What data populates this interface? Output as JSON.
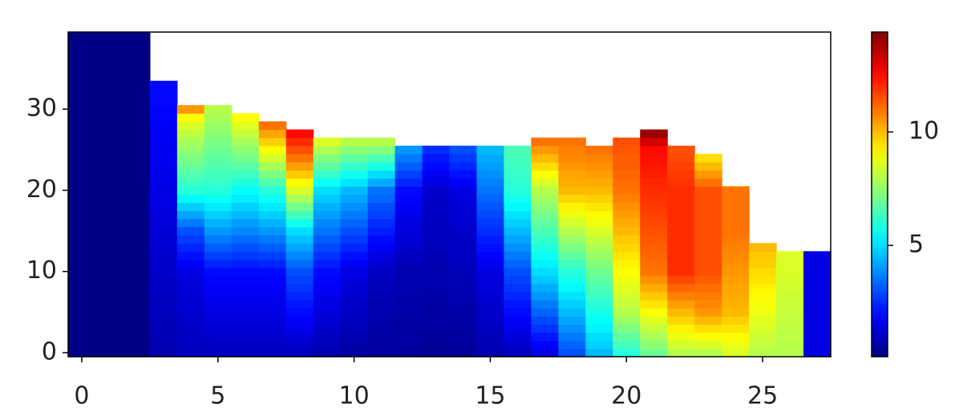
{
  "chart_data": {
    "type": "heatmap",
    "colormap": "jet",
    "clim": [
      0.1,
      14.4
    ],
    "x": [
      0,
      1,
      2,
      3,
      4,
      5,
      6,
      7,
      8,
      9,
      10,
      11,
      12,
      13,
      14,
      15,
      16,
      17,
      18,
      19,
      20,
      21,
      22,
      23,
      24,
      25,
      26,
      27
    ],
    "y": [
      0,
      1,
      2,
      3,
      4,
      5,
      6,
      7,
      8,
      9,
      10,
      11,
      12,
      13,
      14,
      15,
      16,
      17,
      18,
      19,
      20,
      21,
      22,
      23,
      24,
      25,
      26,
      27,
      28,
      29,
      30,
      31,
      32,
      33,
      34,
      35,
      36,
      37,
      38,
      39
    ],
    "values": [
      [
        0.2,
        0.2,
        0.2,
        0.2,
        0.2,
        0.2,
        0.2,
        0.2,
        0.2,
        0.2,
        0.2,
        0.2,
        0.2,
        0.2,
        0.2,
        0.2,
        0.2,
        0.2,
        0.2,
        0.2,
        0.2,
        0.2,
        0.2,
        0.2,
        0.2,
        0.2,
        0.2,
        0.2,
        0.2,
        0.2,
        0.2,
        0.2,
        0.2,
        0.2,
        0.2,
        0.2,
        0.2,
        0.2,
        0.2,
        0.2
      ],
      [
        0.2,
        0.2,
        0.2,
        0.2,
        0.2,
        0.2,
        0.2,
        0.2,
        0.2,
        0.2,
        0.2,
        0.2,
        0.2,
        0.2,
        0.2,
        0.2,
        0.2,
        0.2,
        0.2,
        0.2,
        0.2,
        0.2,
        0.2,
        0.2,
        0.2,
        0.2,
        0.2,
        0.2,
        0.2,
        0.2,
        0.2,
        0.2,
        0.2,
        0.2,
        0.2,
        0.2,
        0.2,
        0.2,
        0.2,
        0.2
      ],
      [
        0.2,
        0.2,
        0.2,
        0.2,
        0.2,
        0.2,
        0.2,
        0.2,
        0.2,
        0.2,
        0.2,
        0.2,
        0.2,
        0.2,
        0.2,
        0.2,
        0.2,
        0.2,
        0.2,
        0.2,
        0.2,
        0.2,
        0.2,
        0.2,
        0.2,
        0.2,
        0.2,
        0.2,
        0.2,
        0.2,
        0.2,
        0.2,
        0.2,
        0.2,
        0.2,
        0.2,
        0.2,
        0.2,
        0.2,
        0.2
      ],
      [
        0.8,
        0.8,
        0.9,
        0.9,
        0.9,
        1.0,
        1.0,
        1.0,
        1.1,
        1.1,
        1.2,
        1.2,
        1.2,
        1.3,
        1.3,
        1.3,
        1.4,
        1.4,
        1.5,
        1.5,
        1.5,
        1.6,
        1.6,
        1.6,
        1.7,
        1.7,
        1.8,
        1.8,
        1.8,
        1.9,
        1.9,
        2.0,
        2.0,
        2.0
      ],
      [
        1.0,
        1.0,
        1.1,
        1.1,
        1.2,
        1.2,
        1.3,
        1.3,
        1.4,
        1.4,
        1.5,
        1.8,
        2.1,
        2.4,
        2.7,
        3.0,
        3.6,
        4.2,
        4.8,
        5.4,
        6.0,
        6.3,
        6.6,
        6.9,
        7.2,
        7.5,
        7.8,
        8.1,
        8.5,
        9.0,
        10.5
      ],
      [
        1.0,
        1.1,
        1.2,
        1.3,
        1.4,
        1.5,
        1.6,
        1.7,
        1.8,
        1.9,
        2.0,
        2.4,
        2.8,
        3.2,
        3.6,
        4.0,
        4.4,
        4.8,
        5.2,
        5.6,
        6.0,
        6.2,
        6.4,
        6.6,
        6.8,
        7.0,
        7.2,
        7.4,
        7.6,
        7.8,
        8.0
      ],
      [
        1.0,
        1.1,
        1.2,
        1.3,
        1.4,
        1.5,
        1.6,
        1.7,
        1.8,
        1.9,
        2.0,
        2.3,
        2.7,
        3.0,
        3.4,
        3.8,
        4.1,
        4.5,
        4.8,
        5.2,
        5.5,
        5.9,
        6.3,
        6.7,
        7.1,
        7.4,
        7.8,
        8.2,
        8.6,
        9.0
      ],
      [
        1.0,
        1.1,
        1.2,
        1.3,
        1.4,
        1.5,
        1.6,
        1.7,
        1.8,
        1.9,
        2.0,
        2.4,
        2.8,
        3.2,
        3.6,
        4.0,
        4.4,
        4.8,
        5.2,
        5.6,
        6.0,
        6.6,
        7.2,
        7.8,
        8.4,
        9.0,
        9.7,
        10.3,
        11.0
      ],
      [
        1.0,
        1.2,
        1.4,
        1.6,
        1.8,
        2.0,
        2.2,
        2.4,
        2.6,
        2.8,
        3.0,
        3.4,
        3.8,
        4.2,
        4.6,
        5.0,
        5.7,
        6.4,
        7.1,
        7.8,
        8.5,
        9.1,
        9.8,
        10.4,
        11.0,
        11.5,
        12.0,
        12.5
      ],
      [
        0.8,
        0.9,
        1.0,
        1.2,
        1.3,
        1.4,
        1.5,
        1.6,
        1.8,
        1.9,
        2.0,
        2.3,
        2.6,
        2.9,
        3.2,
        3.5,
        3.8,
        4.1,
        4.4,
        4.7,
        5.0,
        5.6,
        6.2,
        6.8,
        7.3,
        7.9,
        8.5
      ],
      [
        0.6,
        0.7,
        0.8,
        0.9,
        1.0,
        1.1,
        1.1,
        1.2,
        1.3,
        1.4,
        1.5,
        1.8,
        2.1,
        2.4,
        2.7,
        3.0,
        3.3,
        3.6,
        3.9,
        4.2,
        4.5,
        5.1,
        5.7,
        6.2,
        6.8,
        7.4,
        8.0
      ],
      [
        0.5,
        0.6,
        0.6,
        0.7,
        0.7,
        0.8,
        0.8,
        0.9,
        0.9,
        1.0,
        1.0,
        1.3,
        1.5,
        1.8,
        2.0,
        2.3,
        2.5,
        2.8,
        3.0,
        3.3,
        3.5,
        4.3,
        5.0,
        5.8,
        6.5,
        7.3,
        8.0
      ],
      [
        0.5,
        0.5,
        0.6,
        0.6,
        0.6,
        0.7,
        0.7,
        0.7,
        0.8,
        0.8,
        0.8,
        0.9,
        1.0,
        1.2,
        1.3,
        1.4,
        1.5,
        1.6,
        1.8,
        1.9,
        2.0,
        2.4,
        2.8,
        3.2,
        3.6,
        4.0
      ],
      [
        0.4,
        0.4,
        0.5,
        0.5,
        0.6,
        0.6,
        0.6,
        0.7,
        0.7,
        0.8,
        0.8,
        0.8,
        0.9,
        0.9,
        1.0,
        1.0,
        1.0,
        1.1,
        1.1,
        1.2,
        1.2,
        1.5,
        1.7,
        2.0,
        2.2,
        2.5
      ],
      [
        0.4,
        0.5,
        0.5,
        0.6,
        0.6,
        0.7,
        0.7,
        0.8,
        0.8,
        0.9,
        0.9,
        1.0,
        1.0,
        1.1,
        1.1,
        1.2,
        1.2,
        1.3,
        1.3,
        1.4,
        1.5,
        1.8,
        2.1,
        2.4,
        2.7,
        3.0
      ],
      [
        0.8,
        0.9,
        0.9,
        1.0,
        1.1,
        1.2,
        1.2,
        1.3,
        1.4,
        1.4,
        1.5,
        1.7,
        1.9,
        2.1,
        2.3,
        2.5,
        2.7,
        2.9,
        3.1,
        3.3,
        3.5,
        3.7,
        3.9,
        4.1,
        4.3,
        4.5
      ],
      [
        1.0,
        1.2,
        1.4,
        1.6,
        1.8,
        2.0,
        2.2,
        2.4,
        2.6,
        2.8,
        3.0,
        3.3,
        3.6,
        3.9,
        4.2,
        4.5,
        4.8,
        5.1,
        5.4,
        5.7,
        6.0,
        6.1,
        6.2,
        6.3,
        6.4,
        6.5
      ],
      [
        1.5,
        1.9,
        2.2,
        2.6,
        2.9,
        3.3,
        3.6,
        4.0,
        4.3,
        4.7,
        5.0,
        5.3,
        5.6,
        5.9,
        6.2,
        6.5,
        6.8,
        7.1,
        7.4,
        7.7,
        8.0,
        8.5,
        9.0,
        9.5,
        10.0,
        10.5,
        11.0
      ],
      [
        3.0,
        3.3,
        3.6,
        3.9,
        4.2,
        4.5,
        4.8,
        5.1,
        5.4,
        5.7,
        6.0,
        6.4,
        6.8,
        7.2,
        7.6,
        8.0,
        8.4,
        8.8,
        9.2,
        9.6,
        10.0,
        10.2,
        10.3,
        10.5,
        10.7,
        10.8,
        11.0
      ],
      [
        4.5,
        4.8,
        5.0,
        5.3,
        5.5,
        5.8,
        6.0,
        6.3,
        6.5,
        6.8,
        7.0,
        7.3,
        7.6,
        7.9,
        8.2,
        8.5,
        8.8,
        9.1,
        9.4,
        9.7,
        10.0,
        10.2,
        10.4,
        10.6,
        10.8,
        11.0
      ],
      [
        6.0,
        6.4,
        6.8,
        7.2,
        7.6,
        8.0,
        8.2,
        8.4,
        8.6,
        8.8,
        9.0,
        9.2,
        9.4,
        9.6,
        9.8,
        10.0,
        10.2,
        10.4,
        10.6,
        10.8,
        11.0,
        11.1,
        11.2,
        11.3,
        11.3,
        11.4,
        11.5
      ],
      [
        7.0,
        7.4,
        7.8,
        8.2,
        8.6,
        9.0,
        9.4,
        9.8,
        10.2,
        10.6,
        11.0,
        11.1,
        11.2,
        11.3,
        11.4,
        11.5,
        11.6,
        11.7,
        11.8,
        11.9,
        12.0,
        12.1,
        12.2,
        12.3,
        12.4,
        12.5,
        13.2,
        14.0
      ],
      [
        8.0,
        8.4,
        8.8,
        9.2,
        9.6,
        10.0,
        10.4,
        10.8,
        11.2,
        11.6,
        12.0,
        12.0,
        12.0,
        12.0,
        12.0,
        12.0,
        12.0,
        12.0,
        12.0,
        12.0,
        12.0,
        11.9,
        11.8,
        11.7,
        11.6,
        11.5
      ],
      [
        8.0,
        8.5,
        9.0,
        9.5,
        10.0,
        10.5,
        10.7,
        10.9,
        11.1,
        11.3,
        11.5,
        11.5,
        11.5,
        11.5,
        11.5,
        11.5,
        11.5,
        11.5,
        11.5,
        11.5,
        11.5,
        11.0,
        10.5,
        10.0,
        9.5
      ],
      [
        8.5,
        8.8,
        9.1,
        9.4,
        9.7,
        10.0,
        10.1,
        10.2,
        10.3,
        10.4,
        10.5,
        10.6,
        10.7,
        10.8,
        10.9,
        11.0,
        11.0,
        11.0,
        11.0,
        11.0,
        11.0
      ],
      [
        8.0,
        8.2,
        8.3,
        8.5,
        8.6,
        8.8,
        8.9,
        9.1,
        9.2,
        9.4,
        9.5,
        9.7,
        9.8,
        10.0
      ],
      [
        8.0,
        8.0,
        8.1,
        8.1,
        8.2,
        8.2,
        8.3,
        8.3,
        8.4,
        8.4,
        8.5,
        8.5,
        8.5
      ],
      [
        1.5,
        1.5,
        1.5,
        1.5,
        1.5,
        1.5,
        1.5,
        1.5,
        1.5,
        1.5,
        1.5,
        1.5,
        1.5
      ]
    ],
    "xlim": [
      -0.5,
      27.5
    ],
    "ylim": [
      -0.5,
      39.5
    ],
    "xticks": [
      0,
      5,
      10,
      15,
      20,
      25
    ],
    "yticks": [
      0,
      10,
      20,
      30
    ],
    "colorbar_ticks": [
      5,
      10
    ]
  }
}
